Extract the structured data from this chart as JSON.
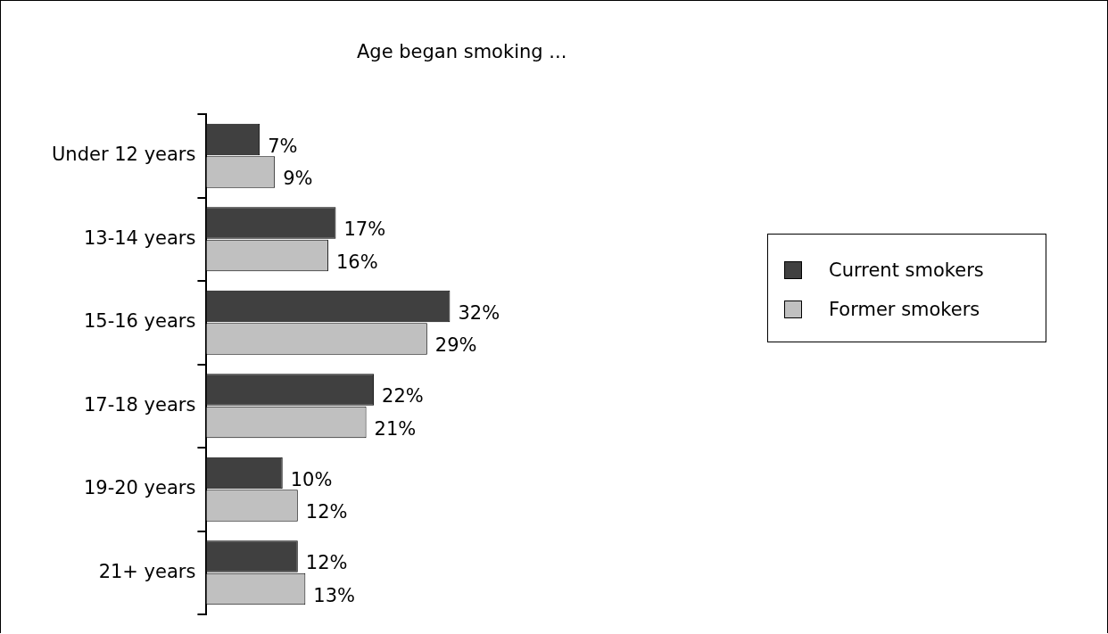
{
  "chart_data": {
    "type": "bar",
    "orientation": "horizontal",
    "title": "Age began smoking ...",
    "categories": [
      "Under 12 years",
      "13-14 years",
      "15-16 years",
      "17-18 years",
      "19-20 years",
      "21+ years"
    ],
    "series": [
      {
        "name": "Current smokers",
        "color": "#404040",
        "values": [
          7,
          17,
          32,
          22,
          10,
          12
        ],
        "value_labels": [
          "7%",
          "17%",
          "32%",
          "22%",
          "10%",
          "12%"
        ]
      },
      {
        "name": "Former smokers",
        "color": "#c0c0c0",
        "values": [
          9,
          16,
          29,
          21,
          12,
          13
        ],
        "value_labels": [
          "9%",
          "16%",
          "29%",
          "21%",
          "12%",
          "13%"
        ]
      }
    ],
    "legend": "right",
    "grid": false,
    "tick_labels": "y"
  }
}
